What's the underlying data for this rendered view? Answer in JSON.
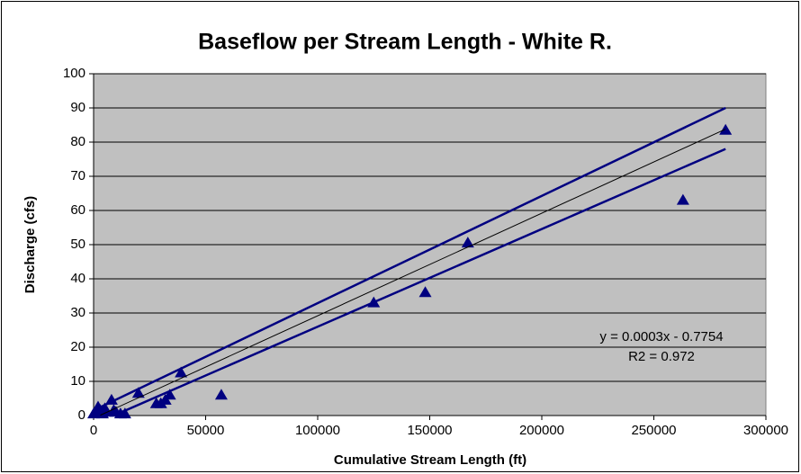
{
  "chart_data": {
    "type": "scatter",
    "title": "Baseflow per Stream Length - White R.",
    "x_label": "Cumulative Stream Length (ft)",
    "y_label": "Discharge (cfs)",
    "annotations": [
      "y = 0.0003x - 0.7754",
      "R2 = 0.972"
    ],
    "xlim": [
      0,
      300000
    ],
    "xticks": [
      0,
      50000,
      100000,
      150000,
      200000,
      250000,
      300000
    ],
    "ylim": [
      0,
      100
    ],
    "yticks": [
      0,
      10,
      20,
      30,
      40,
      50,
      60,
      70,
      80,
      90,
      100
    ],
    "grid": true,
    "series": [
      {
        "color": "#000080",
        "marker": "triangle",
        "x": [
          0,
          1000,
          2000,
          3000,
          4000,
          5000,
          6000,
          8000,
          9000,
          10000,
          12000,
          14000,
          20000,
          28000,
          30000,
          32000,
          34000,
          39000,
          57000,
          125000,
          148000,
          167000,
          263000,
          282000
        ],
        "values": [
          0.5,
          1,
          2.5,
          1.5,
          0.5,
          2,
          1,
          4.5,
          1.5,
          1,
          0.5,
          0.5,
          6.5,
          3.5,
          3.5,
          4.5,
          6,
          12.5,
          6,
          33,
          36,
          50.5,
          63,
          83.5
        ]
      },
      {
        "color": "#000000",
        "marker": "line",
        "width": 1,
        "x": [
          3000,
          282000
        ],
        "values": [
          0.1,
          83.8
        ]
      },
      {
        "color": "#000080",
        "marker": "line",
        "width": 2.5,
        "x": [
          0,
          282000
        ],
        "values": [
          1.5,
          90
        ]
      },
      {
        "color": "#000080",
        "marker": "line",
        "width": 2.5,
        "x": [
          9000,
          282000
        ],
        "values": [
          0,
          78
        ]
      }
    ]
  }
}
